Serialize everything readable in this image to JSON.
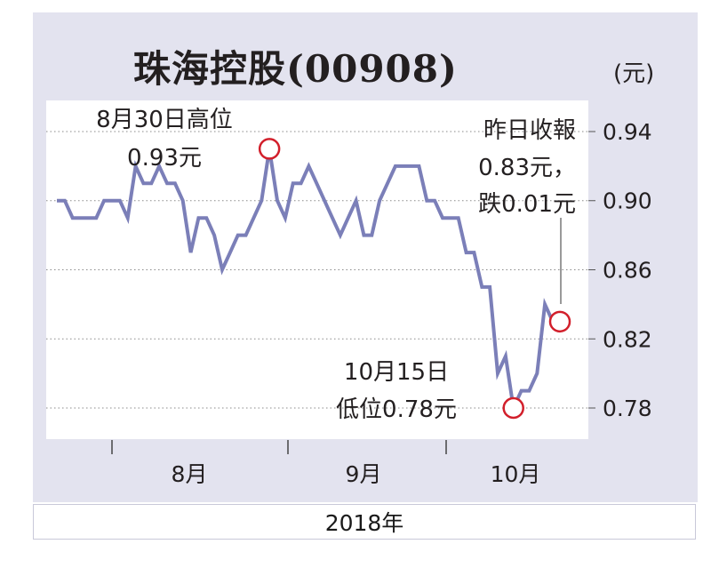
{
  "chart_data": {
    "type": "line",
    "title": "珠海控股(00908)",
    "unit_label": "(元)",
    "year_label": "2018年",
    "yticks": [
      "0.94",
      "0.90",
      "0.86",
      "0.82",
      "0.78"
    ],
    "ytick_values": [
      0.94,
      0.9,
      0.86,
      0.82,
      0.78
    ],
    "ylim": [
      0.762,
      0.958
    ],
    "month_labels": [
      "8月",
      "9月",
      "10月"
    ],
    "grid": "horizontal-dotted",
    "series": [
      {
        "color": "#7b7fb8",
        "values": [
          0.9,
          0.9,
          0.89,
          0.89,
          0.89,
          0.89,
          0.9,
          0.9,
          0.9,
          0.89,
          0.92,
          0.91,
          0.91,
          0.92,
          0.91,
          0.91,
          0.9,
          0.87,
          0.89,
          0.89,
          0.88,
          0.86,
          0.87,
          0.88,
          0.88,
          0.89,
          0.9,
          0.93,
          0.9,
          0.89,
          0.91,
          0.91,
          0.92,
          0.91,
          0.9,
          0.89,
          0.88,
          0.89,
          0.9,
          0.88,
          0.88,
          0.9,
          0.91,
          0.92,
          0.92,
          0.92,
          0.92,
          0.9,
          0.9,
          0.89,
          0.89,
          0.89,
          0.87,
          0.87,
          0.85,
          0.85,
          0.8,
          0.81,
          0.78,
          0.79,
          0.79,
          0.8,
          0.84,
          0.83
        ]
      }
    ],
    "annotations": [
      {
        "lines": [
          "8月30日高位",
          "0.93元"
        ],
        "point_index": 27,
        "value": 0.93
      },
      {
        "lines": [
          "10月15日",
          "低位0.78元"
        ],
        "point_index": 58,
        "value": 0.78
      },
      {
        "lines": [
          "昨日收報",
          "0.83元，",
          "跌0.01元"
        ],
        "point_index": 63,
        "value": 0.83
      }
    ]
  }
}
